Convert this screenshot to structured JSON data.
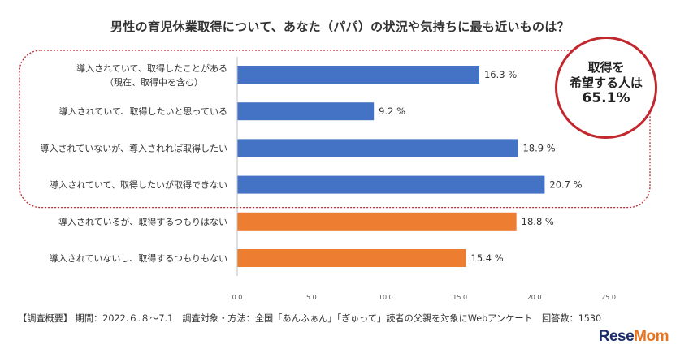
{
  "title": "男性の育児休業取得について、あなた（パパ）の状況や気持ちに最も近いものは？",
  "callout": {
    "line1": "取得を",
    "line2": "希望する人は",
    "value": "65.1%"
  },
  "footer": "【調査概要】 期間：2022.６.８～7.1　調査対象・方法：全国「あんふぁん」「ぎゅって」読者の父親を対象にWebアンケート　回答数：1530",
  "logo": {
    "part1": "Rese",
    "part2": "Mom"
  },
  "colors": {
    "blue": "#4472c4",
    "orange": "#ed7d31",
    "highlight": "#c2272d"
  },
  "chart_data": {
    "type": "bar",
    "orientation": "horizontal",
    "title": "男性の育児休業取得について、あなた（パパ）の状況や気持ちに最も近いものは？",
    "categories": [
      [
        "導入されていて、取得したことがある",
        "（現在、取得中を含む）"
      ],
      [
        "導入されていて、取得したいと思っている"
      ],
      [
        "導入されていないが、導入されれば取得したい"
      ],
      [
        "導入されていて、取得したいが取得できない"
      ],
      [
        "導入されているが、取得するつもりはない"
      ],
      [
        "導入されていないし、取得するつもりもない"
      ]
    ],
    "values": [
      16.3,
      9.2,
      18.9,
      20.7,
      18.8,
      15.4
    ],
    "value_labels": [
      "16.3 %",
      "9.2 %",
      "18.9 %",
      "20.7 %",
      "18.8 %",
      "15.4 %"
    ],
    "groups": [
      "blue",
      "blue",
      "blue",
      "blue",
      "orange",
      "orange"
    ],
    "xlim": [
      0,
      25
    ],
    "xticks": [
      "0.0",
      "5.0",
      "10.0",
      "15.0",
      "20.0",
      "25.0"
    ],
    "xtick_values": [
      0,
      5,
      10,
      15,
      20,
      25
    ],
    "highlighted_group": "blue",
    "unit": "%"
  }
}
